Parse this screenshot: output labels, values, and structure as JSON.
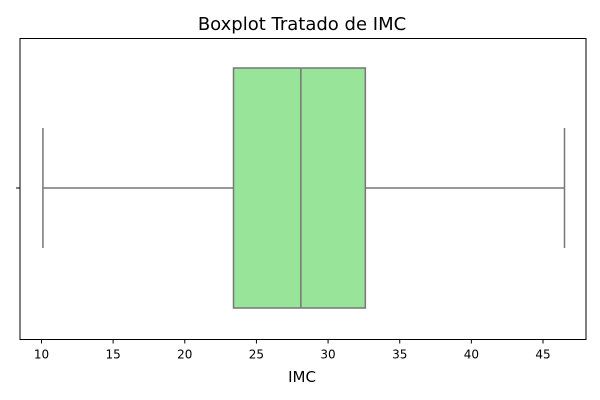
{
  "chart_data": {
    "type": "boxplot",
    "title": "Boxplot Tratado de IMC",
    "xlabel": "IMC",
    "ylabel": "",
    "orientation": "horizontal",
    "xlim": [
      8.5,
      48.0
    ],
    "xticks": [
      10,
      15,
      20,
      25,
      30,
      35,
      40,
      45
    ],
    "grid": false,
    "box": {
      "whisker_low": 10.1,
      "q1": 23.4,
      "median": 28.1,
      "q3": 32.6,
      "whisker_high": 46.5
    },
    "colors": {
      "box_fill": "#98e499",
      "line": "#777777",
      "axis": "#000000"
    }
  }
}
